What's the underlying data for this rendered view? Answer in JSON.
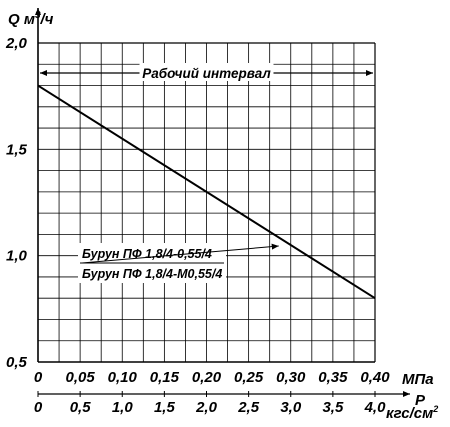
{
  "chart_data": {
    "type": "line",
    "y_axis": {
      "label_q": "Q",
      "label_unit": "м",
      "label_sup": "3",
      "label_tail": "/ч",
      "ylim": [
        0.5,
        2.0
      ],
      "ticks": [
        "2,0",
        "1,5",
        "1,0",
        "0,5"
      ],
      "tick_values": [
        2.0,
        1.5,
        1.0,
        0.5
      ]
    },
    "x_axis_mpa": {
      "unit": "МПа",
      "xlim": [
        0,
        0.4
      ],
      "ticks": [
        "0",
        "0,05",
        "0,10",
        "0,15",
        "0,20",
        "0,25",
        "0,30",
        "0,35",
        "0,40"
      ],
      "tick_values": [
        0,
        0.05,
        0.1,
        0.15,
        0.2,
        0.25,
        0.3,
        0.35,
        0.4
      ]
    },
    "x_axis_kgf": {
      "symbol": "P",
      "unit": "кгс/см",
      "unit_sup": "2",
      "ticks": [
        "0",
        "0,5",
        "1,0",
        "1,5",
        "2,0",
        "2,5",
        "3,0",
        "3,5",
        "4,0"
      ]
    },
    "series": [
      {
        "x": [
          0,
          0.4
        ],
        "y": [
          1.8,
          0.8
        ]
      }
    ],
    "range_label": "Рабочий интервал",
    "range": [
      0,
      0.4
    ],
    "legend": [
      "Бурун ПФ 1,8/4-0,55/4",
      "Бурун ПФ 1,8/4-М0,55/4"
    ],
    "legend_pointer_x": 0.3,
    "grid": true
  }
}
